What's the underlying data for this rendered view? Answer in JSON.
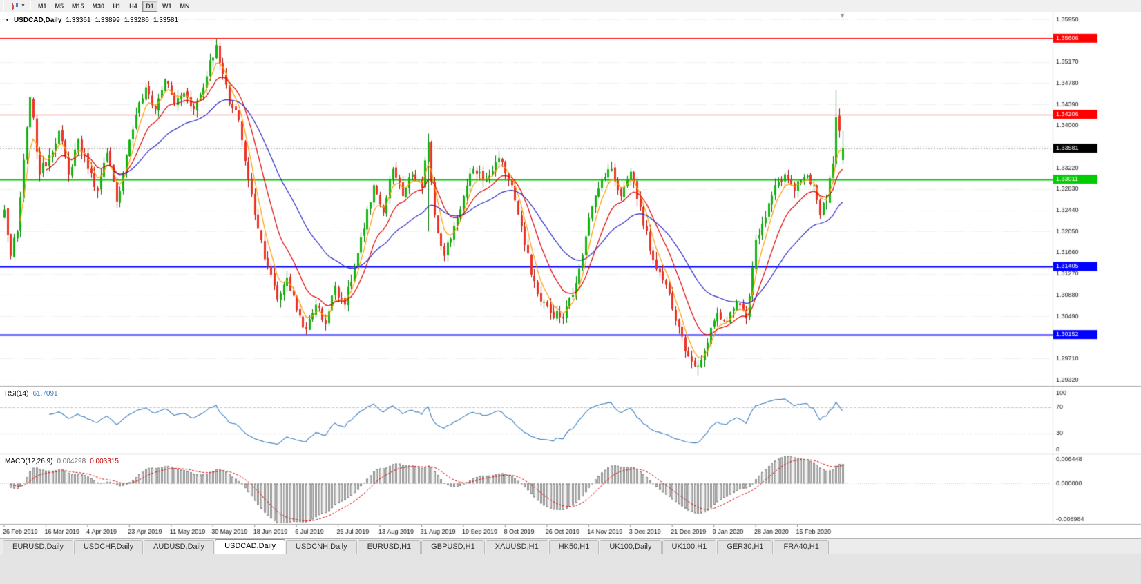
{
  "window": {
    "symbol_period": "USDCAD,Daily",
    "ohlc": {
      "open": "1.33361",
      "high": "1.33899",
      "low": "1.33286",
      "close": "1.33581"
    }
  },
  "toolbar": {
    "timeframes": [
      "M1",
      "M5",
      "M15",
      "M30",
      "H1",
      "H4",
      "D1",
      "W1",
      "MN"
    ],
    "active_timeframe": "D1"
  },
  "chart_data": {
    "type": "candlestick",
    "symbol": "USDCAD",
    "timeframe": "Daily",
    "bars": 262,
    "bars_per_label": 13,
    "x_labels": [
      "26 Feb 2019",
      "16 Mar 2019",
      "4 Apr 2019",
      "23 Apr 2019",
      "11 May 2019",
      "30 May 2019",
      "18 Jun 2019",
      "6 Jul 2019",
      "25 Jul 2019",
      "13 Aug 2019",
      "31 Aug 2019",
      "19 Sep 2019",
      "8 Oct 2019",
      "26 Oct 2019",
      "14 Nov 2019",
      "3 Dec 2019",
      "21 Dec 2019",
      "9 Jan 2020",
      "28 Jan 2020",
      "15 Feb 2020"
    ],
    "price_axis": {
      "min": 1.2922,
      "max": 1.3608,
      "grid_start": 1.2932,
      "grid_step": 0.0039,
      "decimals": 5
    },
    "noise_amplitude": 0.0011,
    "close_anchors": [
      [
        0,
        1.3245
      ],
      [
        2,
        1.316
      ],
      [
        4,
        1.3205
      ],
      [
        8,
        1.3452
      ],
      [
        11,
        1.331
      ],
      [
        14,
        1.3345
      ],
      [
        17,
        1.339
      ],
      [
        20,
        1.331
      ],
      [
        23,
        1.3375
      ],
      [
        26,
        1.332
      ],
      [
        29,
        1.328
      ],
      [
        32,
        1.335
      ],
      [
        35,
        1.326
      ],
      [
        38,
        1.3345
      ],
      [
        41,
        1.342
      ],
      [
        44,
        1.347
      ],
      [
        47,
        1.343
      ],
      [
        50,
        1.3485
      ],
      [
        53,
        1.344
      ],
      [
        56,
        1.346
      ],
      [
        59,
        1.343
      ],
      [
        62,
        1.347
      ],
      [
        64,
        1.352
      ],
      [
        66,
        1.3548
      ],
      [
        68,
        1.3495
      ],
      [
        70,
        1.344
      ],
      [
        73,
        1.341
      ],
      [
        76,
        1.33
      ],
      [
        79,
        1.321
      ],
      [
        82,
        1.314
      ],
      [
        85,
        1.308
      ],
      [
        88,
        1.312
      ],
      [
        91,
        1.306
      ],
      [
        94,
        1.3025
      ],
      [
        97,
        1.307
      ],
      [
        100,
        1.3035
      ],
      [
        103,
        1.3105
      ],
      [
        106,
        1.307
      ],
      [
        109,
        1.314
      ],
      [
        112,
        1.321
      ],
      [
        115,
        1.329
      ],
      [
        118,
        1.324
      ],
      [
        121,
        1.332
      ],
      [
        124,
        1.327
      ],
      [
        127,
        1.331
      ],
      [
        130,
        1.3285
      ],
      [
        132,
        1.337
      ],
      [
        134,
        1.3235
      ],
      [
        137,
        1.316
      ],
      [
        140,
        1.3215
      ],
      [
        143,
        1.327
      ],
      [
        146,
        1.332
      ],
      [
        150,
        1.33
      ],
      [
        154,
        1.334
      ],
      [
        158,
        1.329
      ],
      [
        162,
        1.318
      ],
      [
        166,
        1.309
      ],
      [
        170,
        1.3055
      ],
      [
        174,
        1.3045
      ],
      [
        178,
        1.311
      ],
      [
        182,
        1.323
      ],
      [
        186,
        1.33
      ],
      [
        189,
        1.332
      ],
      [
        192,
        1.327
      ],
      [
        195,
        1.3315
      ],
      [
        198,
        1.325
      ],
      [
        201,
        1.317
      ],
      [
        204,
        1.313
      ],
      [
        207,
        1.309
      ],
      [
        210,
        1.303
      ],
      [
        213,
        1.2975
      ],
      [
        216,
        1.2958
      ],
      [
        219,
        1.3
      ],
      [
        222,
        1.3055
      ],
      [
        225,
        1.304
      ],
      [
        228,
        1.3075
      ],
      [
        231,
        1.3045
      ],
      [
        234,
        1.319
      ],
      [
        237,
        1.323
      ],
      [
        240,
        1.329
      ],
      [
        243,
        1.331
      ],
      [
        246,
        1.328
      ],
      [
        249,
        1.3305
      ],
      [
        252,
        1.329
      ],
      [
        254,
        1.3235
      ],
      [
        256,
        1.326
      ],
      [
        258,
        1.333
      ],
      [
        259,
        1.3415
      ],
      [
        260,
        1.339
      ],
      [
        261,
        1.33581
      ]
    ],
    "forced": {
      "last_ohlc": [
        1.33361,
        1.33899,
        1.33286,
        1.33581
      ],
      "spike": {
        "bar": 259,
        "high": 1.3465
      },
      "top": {
        "bar": 66,
        "high": 1.3559
      },
      "bottom": {
        "bar": 216,
        "low": 1.294
      },
      "tall_bar": {
        "bar": 132,
        "high": 1.3385,
        "low": 1.3205
      }
    },
    "candle_colors": {
      "up": "#0fb40f",
      "up_wick": "#067806",
      "down": "#ee3124",
      "down_wick": "#a30f0f"
    },
    "levels": [
      {
        "price": 1.35606,
        "label": "1.35606",
        "color": "#ff0000",
        "width": 1
      },
      {
        "price": 1.34206,
        "label": "1.34206",
        "color": "#ff0000",
        "width": 1
      },
      {
        "price": 1.33011,
        "label": "1.33011",
        "color": "#00cc00",
        "width": 2
      },
      {
        "price": 1.31405,
        "label": "1.31405",
        "color": "#0000ff",
        "width": 2
      },
      {
        "price": 1.30152,
        "label": "1.30152",
        "color": "#0000ff",
        "width": 2
      }
    ],
    "current_price": {
      "value": 1.33581,
      "label": "1.33581",
      "badge_color": "#000000",
      "line_color": "#b4b4b4"
    },
    "moving_averages": [
      {
        "name": "fast-ma",
        "period": 5,
        "color": "#ff9c00"
      },
      {
        "name": "medium-ma",
        "period": 13,
        "color": "#e00000"
      },
      {
        "name": "slow-ma",
        "period": 34,
        "color": "#2929c8"
      }
    ],
    "rsi": {
      "label": "RSI(14)",
      "value_text": "61.7091",
      "line_color": "#3e7ec1",
      "guide_levels": [
        70,
        30
      ],
      "axis_labels": [
        "100",
        "70",
        "30",
        "0"
      ]
    },
    "macd": {
      "label": "MACD(12,26,9)",
      "value_main": "0.004298",
      "value_signal": "0.003315",
      "max": 0.006448,
      "min": -0.008984,
      "axis_labels": [
        "0.006448",
        "0.000000",
        "-0.008984"
      ],
      "hist_fill": "#d6d6d6",
      "hist_stroke": "#8f8f8f",
      "signal_color": "#e00000"
    }
  },
  "bottom_tabs": {
    "items": [
      "EURUSD,Daily",
      "USDCHF,Daily",
      "AUDUSD,Daily",
      "USDCAD,Daily",
      "USDCNH,Daily",
      "EURUSD,H1",
      "GBPUSD,H1",
      "XAUUSD,H1",
      "HK50,H1",
      "UK100,Daily",
      "UK100,H1",
      "GER30,H1",
      "FRA40,H1"
    ],
    "active_index": 3
  }
}
